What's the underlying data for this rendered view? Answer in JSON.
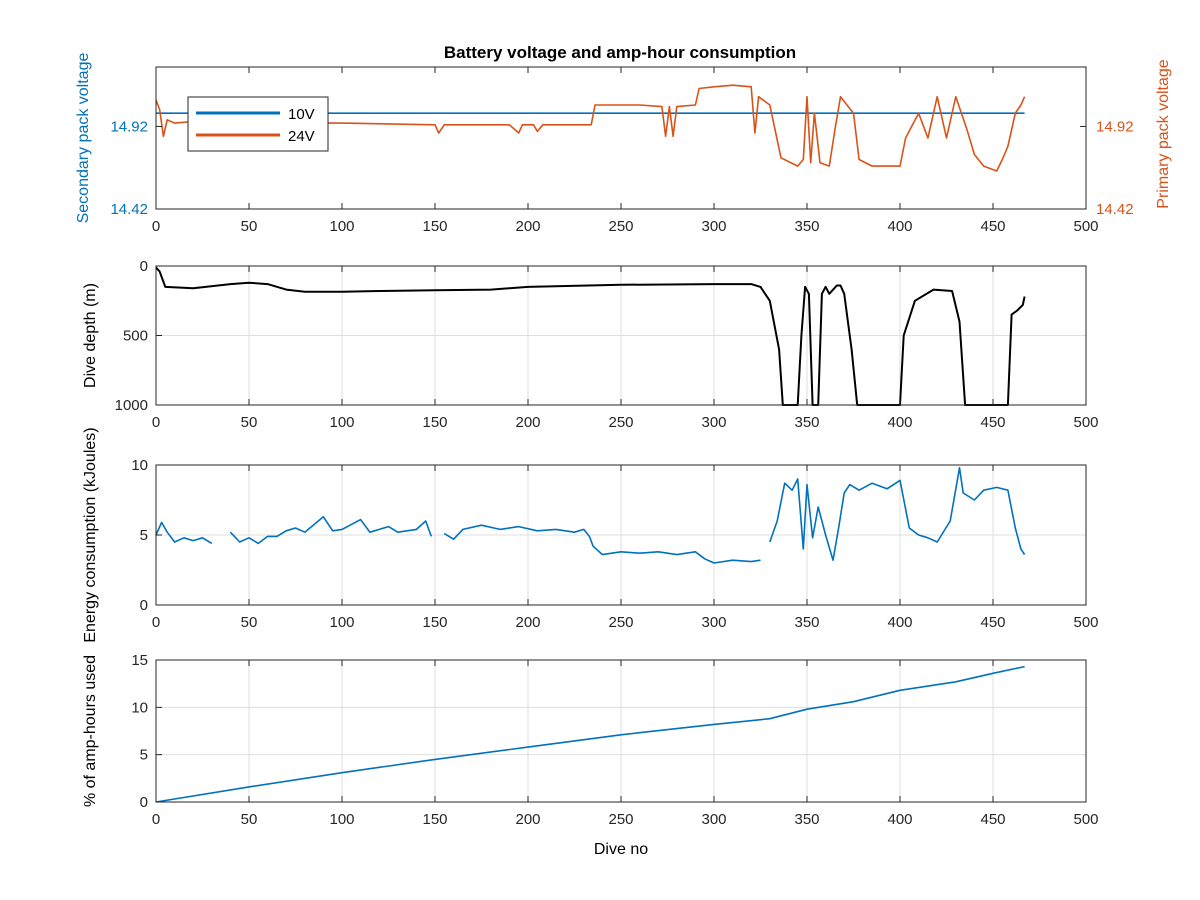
{
  "figure": {
    "title": "Battery voltage and amp-hour consumption",
    "colors": {
      "blue": "#0072BD",
      "orange": "#D95319",
      "black": "#000000",
      "grid": "#DFDFDF",
      "axis": "#262626"
    }
  },
  "chart_data": [
    {
      "type": "line",
      "title": "Battery voltage and amp-hour consumption",
      "xlabel": "",
      "ylabel": "Secondary pack voltage",
      "ylabel_right": "Primary pack voltage",
      "xlim": [
        0,
        500
      ],
      "ylim": [
        14.42,
        15.28
      ],
      "ylim_right": [
        14.42,
        15.28
      ],
      "x_ticks": [
        "0",
        "50",
        "100",
        "150",
        "200",
        "250",
        "300",
        "350",
        "400",
        "450",
        "500"
      ],
      "y_ticks": [
        "14.42",
        "14.92"
      ],
      "y_ticks_right": [
        "14.42",
        "14.92"
      ],
      "grid": false,
      "legend": {
        "placement": "top-left",
        "entries": [
          "10V",
          "24V"
        ]
      },
      "series": [
        {
          "name": "10V",
          "axis": "left",
          "color": "#0072BD",
          "points": [
            [
              0,
              15.0
            ],
            [
              467,
              15.0
            ]
          ]
        },
        {
          "name": "24V",
          "axis": "right",
          "color": "#D95319",
          "points": [
            [
              0,
              15.08
            ],
            [
              2,
              15.02
            ],
            [
              4,
              14.86
            ],
            [
              6,
              14.96
            ],
            [
              10,
              14.94
            ],
            [
              20,
              14.95
            ],
            [
              40,
              14.95
            ],
            [
              60,
              14.94
            ],
            [
              80,
              14.94
            ],
            [
              100,
              14.94
            ],
            [
              150,
              14.93
            ],
            [
              152,
              14.88
            ],
            [
              155,
              14.93
            ],
            [
              190,
              14.93
            ],
            [
              195,
              14.88
            ],
            [
              197,
              14.93
            ],
            [
              203,
              14.93
            ],
            [
              205,
              14.89
            ],
            [
              208,
              14.93
            ],
            [
              232,
              14.93
            ],
            [
              234,
              14.93
            ],
            [
              236,
              15.05
            ],
            [
              260,
              15.05
            ],
            [
              272,
              15.04
            ],
            [
              274,
              14.86
            ],
            [
              276,
              15.04
            ],
            [
              278,
              14.86
            ],
            [
              280,
              15.04
            ],
            [
              290,
              15.05
            ],
            [
              292,
              15.15
            ],
            [
              300,
              15.16
            ],
            [
              310,
              15.17
            ],
            [
              320,
              15.16
            ],
            [
              322,
              14.88
            ],
            [
              324,
              15.1
            ],
            [
              330,
              15.05
            ],
            [
              336,
              14.73
            ],
            [
              345,
              14.68
            ],
            [
              348,
              14.72
            ],
            [
              350,
              15.1
            ],
            [
              352,
              14.7
            ],
            [
              354,
              15.0
            ],
            [
              357,
              14.7
            ],
            [
              362,
              14.68
            ],
            [
              365,
              14.9
            ],
            [
              368,
              15.1
            ],
            [
              375,
              15.0
            ],
            [
              378,
              14.72
            ],
            [
              385,
              14.68
            ],
            [
              400,
              14.68
            ],
            [
              403,
              14.85
            ],
            [
              410,
              15.0
            ],
            [
              415,
              14.85
            ],
            [
              420,
              15.1
            ],
            [
              425,
              14.85
            ],
            [
              430,
              15.1
            ],
            [
              436,
              14.9
            ],
            [
              440,
              14.75
            ],
            [
              445,
              14.68
            ],
            [
              452,
              14.65
            ],
            [
              455,
              14.72
            ],
            [
              458,
              14.8
            ],
            [
              462,
              15.0
            ],
            [
              465,
              15.05
            ],
            [
              467,
              15.1
            ]
          ]
        }
      ]
    },
    {
      "type": "line",
      "xlabel": "",
      "ylabel": "Dive depth (m)",
      "xlim": [
        0,
        500
      ],
      "ylim": [
        0,
        1000
      ],
      "y_reversed": true,
      "x_ticks": [
        "0",
        "50",
        "100",
        "150",
        "200",
        "250",
        "300",
        "350",
        "400",
        "450",
        "500"
      ],
      "y_ticks": [
        "0",
        "500",
        "1000"
      ],
      "grid": true,
      "series": [
        {
          "color": "#000000",
          "points": [
            [
              0,
              10
            ],
            [
              2,
              40
            ],
            [
              5,
              150
            ],
            [
              20,
              160
            ],
            [
              40,
              130
            ],
            [
              50,
              120
            ],
            [
              60,
              130
            ],
            [
              70,
              170
            ],
            [
              80,
              185
            ],
            [
              100,
              185
            ],
            [
              120,
              180
            ],
            [
              150,
              175
            ],
            [
              180,
              170
            ],
            [
              200,
              150
            ],
            [
              250,
              135
            ],
            [
              300,
              130
            ],
            [
              320,
              130
            ],
            [
              325,
              150
            ],
            [
              330,
              250
            ],
            [
              335,
              600
            ],
            [
              337,
              1000
            ],
            [
              345,
              1000
            ],
            [
              347,
              500
            ],
            [
              349,
              150
            ],
            [
              351,
              200
            ],
            [
              353,
              1000
            ],
            [
              356,
              1000
            ],
            [
              358,
              200
            ],
            [
              360,
              150
            ],
            [
              362,
              200
            ],
            [
              366,
              140
            ],
            [
              368,
              140
            ],
            [
              370,
              200
            ],
            [
              374,
              600
            ],
            [
              377,
              1000
            ],
            [
              400,
              1000
            ],
            [
              402,
              500
            ],
            [
              408,
              250
            ],
            [
              418,
              170
            ],
            [
              428,
              180
            ],
            [
              432,
              400
            ],
            [
              435,
              1000
            ],
            [
              458,
              1000
            ],
            [
              460,
              350
            ],
            [
              463,
              320
            ],
            [
              466,
              280
            ],
            [
              467,
              220
            ]
          ]
        }
      ]
    },
    {
      "type": "line",
      "xlabel": "",
      "ylabel": "Energy consumption (kJoules)",
      "xlim": [
        0,
        500
      ],
      "ylim": [
        0,
        10
      ],
      "x_ticks": [
        "0",
        "50",
        "100",
        "150",
        "200",
        "250",
        "300",
        "350",
        "400",
        "450",
        "500"
      ],
      "y_ticks": [
        "0",
        "5",
        "10"
      ],
      "grid": true,
      "series": [
        {
          "color": "#0072BD",
          "segments": [
            [
              [
                0,
                5.0
              ],
              [
                3,
                5.9
              ],
              [
                6,
                5.2
              ],
              [
                10,
                4.5
              ],
              [
                15,
                4.8
              ],
              [
                20,
                4.6
              ],
              [
                25,
                4.8
              ],
              [
                30,
                4.4
              ]
            ],
            [
              [
                40,
                5.2
              ],
              [
                45,
                4.5
              ],
              [
                50,
                4.8
              ],
              [
                55,
                4.4
              ],
              [
                60,
                4.9
              ],
              [
                65,
                4.9
              ],
              [
                70,
                5.3
              ],
              [
                75,
                5.5
              ],
              [
                80,
                5.2
              ],
              [
                90,
                6.3
              ],
              [
                95,
                5.3
              ],
              [
                100,
                5.4
              ],
              [
                110,
                6.1
              ],
              [
                115,
                5.2
              ],
              [
                125,
                5.6
              ],
              [
                130,
                5.2
              ],
              [
                140,
                5.4
              ],
              [
                145,
                6.0
              ],
              [
                148,
                4.9
              ]
            ],
            [
              [
                155,
                5.1
              ],
              [
                160,
                4.7
              ],
              [
                165,
                5.4
              ],
              [
                175,
                5.7
              ],
              [
                185,
                5.4
              ],
              [
                195,
                5.6
              ],
              [
                205,
                5.3
              ],
              [
                215,
                5.4
              ],
              [
                225,
                5.2
              ],
              [
                230,
                5.4
              ],
              [
                233,
                4.9
              ],
              [
                235,
                4.2
              ],
              [
                240,
                3.6
              ],
              [
                250,
                3.8
              ],
              [
                260,
                3.7
              ],
              [
                270,
                3.8
              ],
              [
                280,
                3.6
              ],
              [
                290,
                3.8
              ],
              [
                295,
                3.3
              ],
              [
                300,
                3.0
              ],
              [
                310,
                3.2
              ],
              [
                320,
                3.1
              ],
              [
                325,
                3.2
              ]
            ],
            [
              [
                330,
                4.5
              ],
              [
                334,
                6.0
              ],
              [
                338,
                8.7
              ],
              [
                342,
                8.2
              ],
              [
                345,
                9.0
              ],
              [
                348,
                4.0
              ],
              [
                350,
                8.6
              ],
              [
                353,
                4.8
              ],
              [
                356,
                7.0
              ],
              [
                360,
                5.0
              ],
              [
                364,
                3.2
              ],
              [
                367,
                5.5
              ],
              [
                370,
                8.0
              ],
              [
                373,
                8.6
              ],
              [
                378,
                8.2
              ],
              [
                385,
                8.7
              ],
              [
                393,
                8.3
              ],
              [
                400,
                8.9
              ],
              [
                405,
                5.5
              ],
              [
                410,
                5.0
              ],
              [
                415,
                4.8
              ],
              [
                420,
                4.5
              ],
              [
                427,
                6.0
              ],
              [
                432,
                9.8
              ],
              [
                434,
                8.0
              ],
              [
                440,
                7.5
              ],
              [
                445,
                8.2
              ],
              [
                452,
                8.4
              ],
              [
                458,
                8.2
              ],
              [
                462,
                5.5
              ],
              [
                465,
                4.0
              ],
              [
                467,
                3.6
              ]
            ]
          ]
        }
      ]
    },
    {
      "type": "line",
      "xlabel": "Dive no",
      "ylabel": "% of amp-hours used",
      "xlim": [
        0,
        500
      ],
      "ylim": [
        0,
        15
      ],
      "x_ticks": [
        "0",
        "50",
        "100",
        "150",
        "200",
        "250",
        "300",
        "350",
        "400",
        "450",
        "500"
      ],
      "y_ticks": [
        "0",
        "5",
        "10",
        "15"
      ],
      "grid": true,
      "series": [
        {
          "color": "#0072BD",
          "points": [
            [
              0,
              0.0
            ],
            [
              50,
              1.6
            ],
            [
              100,
              3.1
            ],
            [
              150,
              4.5
            ],
            [
              200,
              5.8
            ],
            [
              250,
              7.1
            ],
            [
              300,
              8.2
            ],
            [
              330,
              8.8
            ],
            [
              350,
              9.8
            ],
            [
              375,
              10.6
            ],
            [
              400,
              11.8
            ],
            [
              430,
              12.7
            ],
            [
              450,
              13.6
            ],
            [
              467,
              14.3
            ]
          ]
        }
      ]
    }
  ]
}
